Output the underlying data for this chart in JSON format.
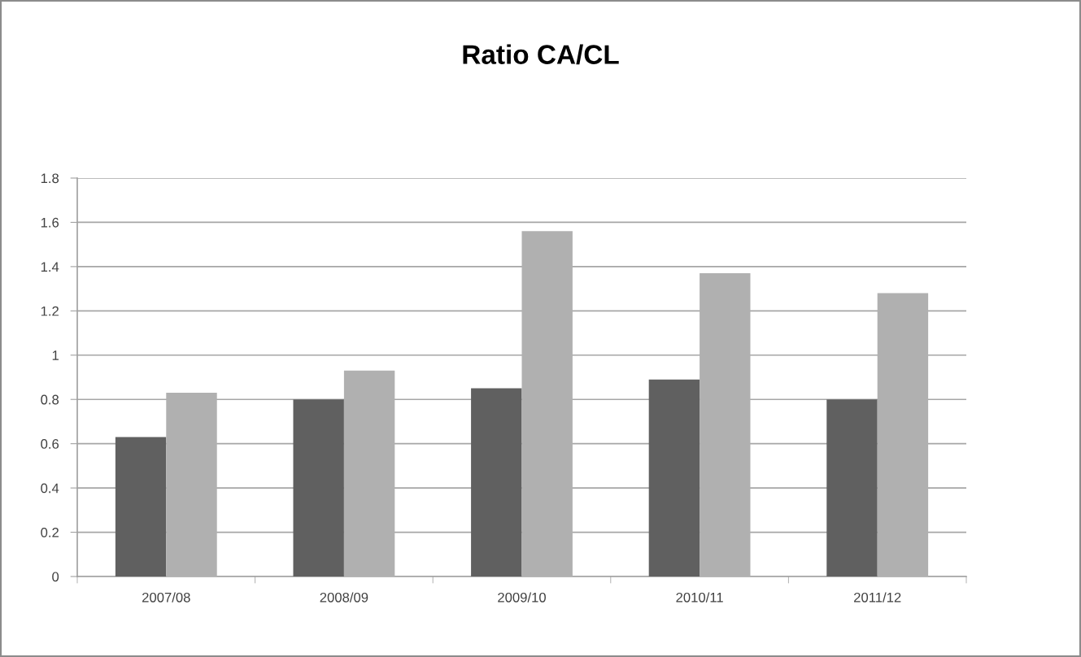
{
  "chart_data": {
    "type": "bar",
    "title": "Ratio CA/CL",
    "categories": [
      "2007/08",
      "2008/09",
      "2009/10",
      "2010/11",
      "2011/12"
    ],
    "series": [
      {
        "color": "#606060",
        "values": [
          0.63,
          0.8,
          0.85,
          0.89,
          0.8
        ]
      },
      {
        "color": "#b0b0b0",
        "values": [
          0.83,
          0.93,
          1.56,
          1.37,
          1.28
        ]
      }
    ],
    "ylim": [
      0,
      1.8
    ],
    "yticks": [
      0,
      0.2,
      0.4,
      0.6,
      0.8,
      1,
      1.2,
      1.4,
      1.6,
      1.8
    ],
    "grid": "y"
  }
}
